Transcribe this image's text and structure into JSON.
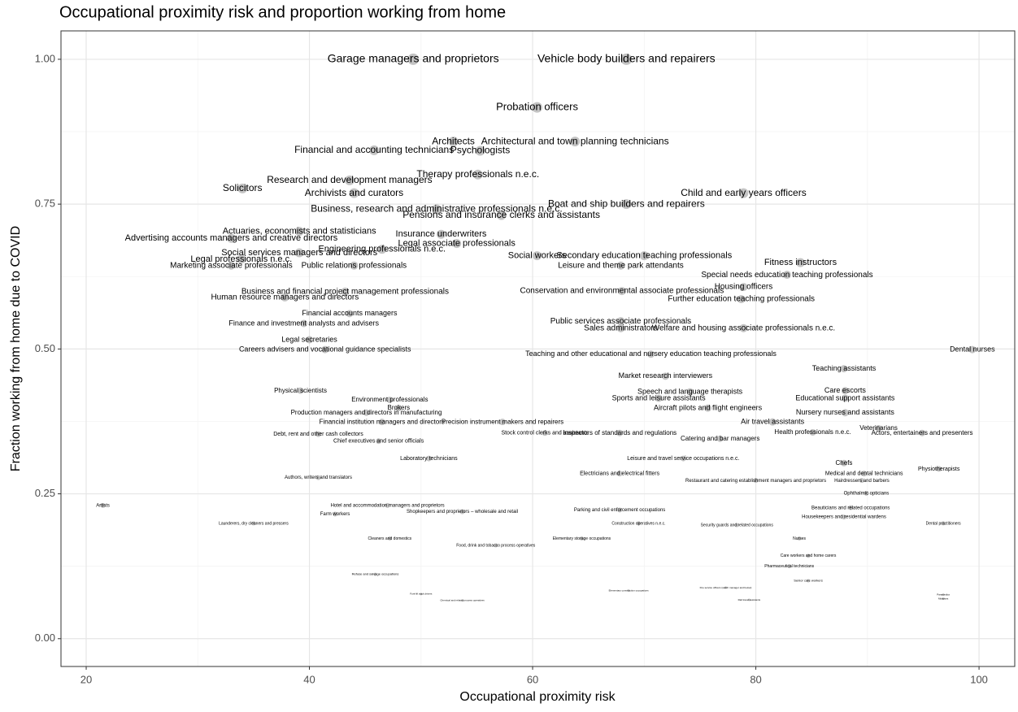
{
  "chart_data": {
    "type": "scatter",
    "title": "Occupational proximity risk and proportion working from home",
    "x_label": "Occupational proximity risk",
    "y_label": "Fraction working from home due to COVID",
    "xlim": [
      17.74,
      103.2
    ],
    "ylim": [
      -0.048,
      1.049
    ],
    "xticks": [
      20,
      40,
      60,
      80,
      100
    ],
    "yticks": [
      {
        "value": 0,
        "label": "0.00"
      },
      {
        "value": 0.25,
        "label": "0.25"
      },
      {
        "value": 0.5,
        "label": "0.50"
      },
      {
        "value": 0.75,
        "label": "0.75"
      },
      {
        "value": 1,
        "label": "1.00"
      }
    ],
    "x_minor_grid": [
      30,
      50,
      70,
      90
    ],
    "y_minor_grid": [
      0.125,
      0.375,
      0.625,
      0.875
    ],
    "grid": true,
    "color": "#b0b0b0",
    "labels": [
      "Garage managers and proprietors",
      "Vehicle body builders and repairers",
      "Probation officers",
      "Architectural and town planning technicians",
      "Architects",
      "Financial and accounting technicians",
      "Psychologists",
      "Therapy professionals n.e.c.",
      "Research and development managers",
      "Solicitors",
      "Archivists and curators",
      "Child and early years officers",
      "Boat and ship builders and repairers",
      "Pensions and insurance clerks and assistants",
      "Business, research and administrative professionals n.e.c.",
      "Actuaries, economists and statisticians",
      "Advertising accounts managers and creative directors",
      "Insurance underwriters",
      "Legal associate professionals",
      "Engineering professionals n.e.c.",
      "Social services managers and directors",
      "Secondary education teaching professionals",
      "Social workers",
      "Legal professionals n.e.c.",
      "Fitness instructors",
      "Marketing associate professionals",
      "Leisure and theme park attendants",
      "Public relations professionals",
      "Special needs education teaching professionals",
      "Housing officers",
      "Conservation and environmental associate professionals",
      "Business and financial project management professionals",
      "Human resource managers and directors",
      "Further education teaching professionals",
      "Financial accounts managers",
      "Public services associate professionals",
      "Finance and investment analysts and advisers",
      "Welfare and housing associate professionals n.e.c.",
      "Sales administrators",
      "Legal secretaries",
      "Careers advisers and vocational guidance specialists",
      "Dental nurses",
      "Teaching and other educational and nursery education teaching professionals",
      "Teaching assistants",
      "Market research interviewers",
      "Physical scientists",
      "Care escorts",
      "Speech and language therapists",
      "Educational support assistants",
      "Sports and leisure assistants",
      "Environment professionals",
      "Brokers",
      "Aircraft pilots and flight engineers",
      "Nursery nurses and assistants",
      "Production managers and directors in manufacturing",
      "Air travel assistants",
      "Financial institution managers and directors",
      "Precision instrument makers and repairers",
      "Veterinarians",
      "Health professionals n.e.c.",
      "Actors, entertainers and presenters",
      "Inspectors of standards and regulations",
      "Debt, rent and other cash collectors",
      "Stock control clerks and assistants",
      "Chief executives and senior officials",
      "Catering and bar managers",
      "Laboratory technicians",
      "Leisure and travel service occupations n.e.c.",
      "Chefs",
      "Physiotherapists",
      "Medical and dental technicians",
      "Authors, writers and translators",
      "Electricians and electrical fitters",
      "Restaurant and catering establishment managers and proprietors",
      "Hairdressers and barbers",
      "Ophthalmic opticians",
      "Artists",
      "Hotel and accommodation managers and proprietors",
      "Beauticians and related occupations",
      "Shopkeepers and proprietors – wholesale and retail",
      "Farm workers",
      "Parking and civil enforcement occupations",
      "Housekeepers and residential wardens",
      "Launderers, dry cleaners and pressers",
      "Dental practitioners",
      "Construction operatives n.e.c.",
      "Security guards and related occupations",
      "Elementary storage occupations",
      "Cleaners and domestics",
      "Nurses",
      "Food, drink and tobacco process operatives",
      "Care workers and home carers",
      "Pharmaceutical technicians",
      "Refuse and salvage occupations",
      "Senior care workers",
      "Fork-lift truck drivers",
      "Chemical and related process operatives",
      "Elementary construction occupations",
      "Fire service officers (watch manager and below)",
      "Rail travel assistants",
      "Paramedics",
      "Midwives"
    ],
    "x": [
      49.3,
      68.4,
      60.4,
      63.8,
      52.9,
      45.8,
      55.3,
      55.1,
      43.6,
      34.0,
      44.0,
      78.9,
      68.4,
      57.2,
      51.4,
      39.1,
      33.0,
      51.8,
      53.2,
      46.5,
      39.1,
      70.0,
      60.4,
      33.9,
      84.0,
      33.0,
      67.9,
      44.0,
      82.8,
      78.9,
      68.0,
      43.2,
      37.8,
      78.7,
      43.6,
      67.9,
      39.5,
      78.9,
      67.9,
      40.0,
      41.4,
      99.4,
      70.6,
      87.9,
      71.9,
      39.2,
      88.0,
      74.1,
      88.0,
      71.3,
      47.2,
      48.0,
      75.7,
      88.0,
      45.1,
      81.5,
      46.5,
      57.3,
      91.0,
      85.1,
      94.9,
      67.8,
      40.8,
      61.1,
      46.2,
      76.8,
      50.7,
      73.5,
      87.9,
      96.4,
      89.7,
      40.8,
      67.8,
      80.0,
      89.5,
      89.9,
      21.5,
      47.0,
      88.5,
      53.7,
      42.3,
      67.8,
      87.9,
      35.0,
      96.8,
      69.5,
      78.3,
      64.4,
      47.2,
      83.9,
      56.7,
      84.7,
      83.0,
      45.9,
      84.7,
      50.0,
      53.7,
      68.6,
      77.3,
      79.4,
      96.8,
      96.8
    ],
    "y": [
      1.0,
      1.0,
      0.917,
      0.858,
      0.858,
      0.843,
      0.842,
      0.801,
      0.791,
      0.777,
      0.769,
      0.769,
      0.75,
      0.731,
      0.741,
      0.703,
      0.691,
      0.698,
      0.682,
      0.672,
      0.666,
      0.661,
      0.661,
      0.655,
      0.649,
      0.644,
      0.644,
      0.644,
      0.628,
      0.607,
      0.6,
      0.599,
      0.589,
      0.586,
      0.561,
      0.548,
      0.544,
      0.536,
      0.536,
      0.516,
      0.499,
      0.499,
      0.491,
      0.466,
      0.453,
      0.428,
      0.428,
      0.426,
      0.415,
      0.415,
      0.412,
      0.398,
      0.398,
      0.39,
      0.39,
      0.374,
      0.374,
      0.374,
      0.363,
      0.356,
      0.355,
      0.355,
      0.353,
      0.355,
      0.341,
      0.345,
      0.311,
      0.311,
      0.303,
      0.293,
      0.285,
      0.278,
      0.285,
      0.273,
      0.273,
      0.251,
      0.23,
      0.23,
      0.226,
      0.219,
      0.215,
      0.222,
      0.21,
      0.199,
      0.199,
      0.199,
      0.196,
      0.173,
      0.173,
      0.173,
      0.161,
      0.143,
      0.125,
      0.111,
      0.1,
      0.077,
      0.066,
      0.083,
      0.088,
      0.067,
      0.076,
      0.069
    ],
    "sizes": [
      14,
      14,
      13,
      12,
      12,
      12,
      12,
      12,
      12,
      12,
      12,
      12,
      12,
      12,
      12,
      11,
      11,
      11,
      11,
      11,
      11,
      11,
      11,
      11,
      11,
      10,
      10,
      10,
      10,
      10,
      10,
      10,
      10,
      10,
      9,
      10,
      9,
      10,
      10,
      9,
      9,
      9,
      9,
      9,
      9,
      8,
      9,
      9,
      9,
      9,
      8,
      8,
      9,
      9,
      8,
      9,
      8,
      8,
      8,
      8,
      8,
      8,
      7,
      7,
      7,
      8,
      7,
      7,
      8,
      7,
      7,
      6,
      7,
      6,
      6,
      6,
      6,
      6,
      6,
      6,
      6,
      6,
      6,
      5,
      5,
      5,
      5,
      5,
      5,
      5,
      5,
      5,
      5,
      4,
      4,
      3,
      3,
      3,
      3,
      3,
      3,
      3
    ]
  }
}
